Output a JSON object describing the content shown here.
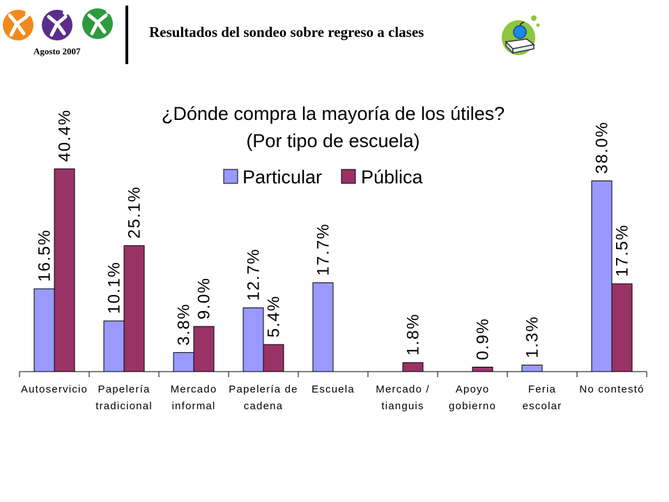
{
  "header": {
    "title": "Resultados del sondeo sobre regreso a clases",
    "date": "Agosto 2007"
  },
  "colors": {
    "particular": "#9999ff",
    "publica": "#993366",
    "logo_orange": "#f08a1e",
    "logo_purple": "#5a2d8c",
    "logo_green": "#2e9a3e",
    "book_green": "#8dc63f",
    "apple_blue": "#1e88e5"
  },
  "chart_data": {
    "type": "bar",
    "title": "¿Dónde compra la mayoría de los útiles?",
    "subtitle": "(Por tipo de escuela)",
    "legend_position": "top-center",
    "grid": false,
    "ylim": [
      0,
      45
    ],
    "categories": [
      [
        "Autoservicio"
      ],
      [
        "Papelería",
        "tradicional"
      ],
      [
        "Mercado",
        "informal"
      ],
      [
        "Papelería de",
        "cadena"
      ],
      [
        "Escuela"
      ],
      [
        "Mercado /",
        "tianguis"
      ],
      [
        "Apoyo",
        "gobierno"
      ],
      [
        "Feria",
        "escolar"
      ],
      [
        "No contestó"
      ]
    ],
    "series": [
      {
        "name": "Particular",
        "values": [
          16.5,
          10.1,
          3.8,
          12.7,
          17.7,
          null,
          null,
          1.3,
          38.0
        ],
        "labels": [
          "16.5%",
          "10.1%",
          "3.8%",
          "12.7%",
          "17.7%",
          "",
          "",
          "1.3%",
          "38.0%"
        ]
      },
      {
        "name": "Pública",
        "values": [
          40.4,
          25.1,
          9.0,
          5.4,
          null,
          1.8,
          0.9,
          null,
          17.5
        ],
        "labels": [
          "40.4%",
          "25.1%",
          "9.0%",
          "5.4%",
          "",
          "1.8%",
          "0.9%",
          "",
          "17.5%"
        ]
      }
    ]
  }
}
